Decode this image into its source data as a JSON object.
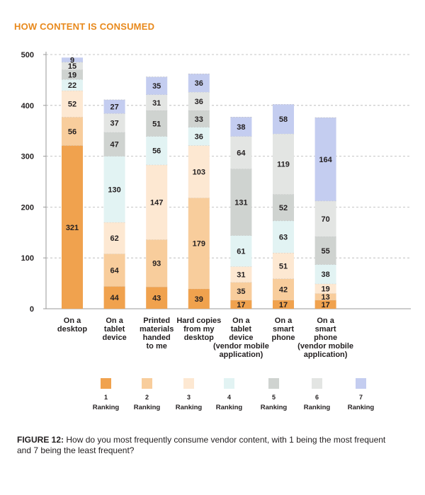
{
  "chart_data": {
    "type": "bar",
    "stacked": true,
    "title": "HOW CONTENT IS CONSUMED",
    "ylim": [
      0,
      500
    ],
    "yticks": [
      0,
      100,
      200,
      300,
      400,
      500
    ],
    "grid": true,
    "categories": [
      [
        "On a",
        "desktop"
      ],
      [
        "On a",
        "tablet",
        "device"
      ],
      [
        "Printed",
        "materials",
        "handed",
        "to me"
      ],
      [
        "Hard copies",
        "from my",
        "desktop"
      ],
      [
        "On a",
        "tablet",
        "device",
        "(vendor mobile",
        "application)"
      ],
      [
        "On a",
        "smart",
        "phone"
      ],
      [
        "On a",
        "smart",
        "phone",
        "(vendor mobile",
        "application)"
      ]
    ],
    "series": [
      {
        "name": "1",
        "label": "Ranking",
        "color": "#f0a24e",
        "values": [
          321,
          44,
          43,
          39,
          17,
          17,
          17
        ]
      },
      {
        "name": "2",
        "label": "Ranking",
        "color": "#f8cd9c",
        "values": [
          56,
          64,
          93,
          179,
          35,
          42,
          13
        ]
      },
      {
        "name": "3",
        "label": "Ranking",
        "color": "#fde8d2",
        "values": [
          52,
          62,
          147,
          103,
          31,
          51,
          19
        ]
      },
      {
        "name": "4",
        "label": "Ranking",
        "color": "#e2f3f3",
        "values": [
          22,
          130,
          56,
          36,
          61,
          63,
          38
        ]
      },
      {
        "name": "5",
        "label": "Ranking",
        "color": "#cfd3d0",
        "values": [
          19,
          47,
          51,
          33,
          131,
          52,
          55
        ]
      },
      {
        "name": "6",
        "label": "Ranking",
        "color": "#e3e5e3",
        "values": [
          15,
          37,
          31,
          36,
          64,
          119,
          70
        ]
      },
      {
        "name": "7",
        "label": "Ranking",
        "color": "#c4cdf0",
        "values": [
          9,
          27,
          35,
          36,
          38,
          58,
          164
        ]
      }
    ]
  },
  "caption": {
    "figure": "FIGURE 12:",
    "text": " How do you most frequently consume vendor content, with 1 being the most frequent and 7 being the least frequent?"
  }
}
